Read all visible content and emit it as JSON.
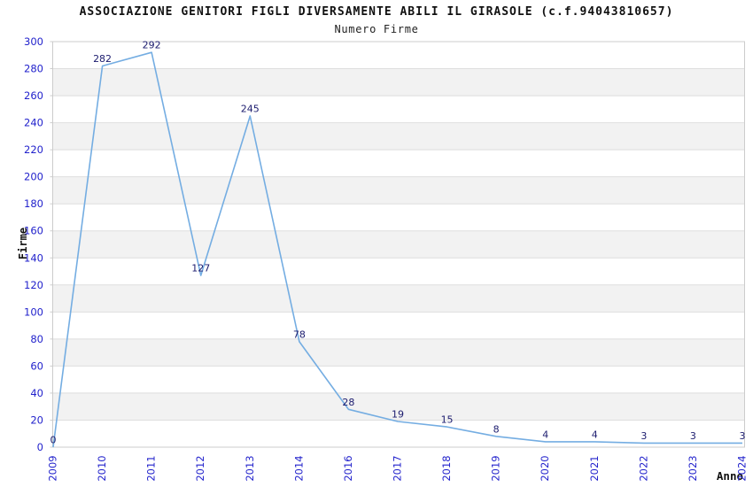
{
  "chart_data": {
    "type": "line",
    "title": "ASSOCIAZIONE GENITORI FIGLI DIVERSAMENTE ABILI IL GIRASOLE (c.f.94043810657)",
    "subtitle": "Numero Firme",
    "xlabel": "Anno",
    "ylabel": "Firme",
    "categories": [
      "2009",
      "2010",
      "2011",
      "2012",
      "2013",
      "2014",
      "2016",
      "2017",
      "2018",
      "2019",
      "2020",
      "2021",
      "2022",
      "2023",
      "2024"
    ],
    "values": [
      0,
      282,
      292,
      127,
      245,
      78,
      28,
      19,
      15,
      8,
      4,
      4,
      3,
      3,
      3
    ],
    "point_labels": [
      "0",
      "282",
      "292",
      "127",
      "245",
      "78",
      "28",
      "19",
      "15",
      "8",
      "4",
      "4",
      "3",
      "3",
      "3"
    ],
    "ylim": [
      0,
      300
    ],
    "ytick_step": 20,
    "ytick_labels": [
      "0",
      "20",
      "40",
      "60",
      "80",
      "100",
      "120",
      "140",
      "160",
      "180",
      "200",
      "220",
      "240",
      "260",
      "280",
      "300"
    ],
    "grid": "horizontal-alternating-bands",
    "legend_position": "none",
    "colors": {
      "series_line": "#74ade2",
      "tick_label_blue": "#2323cc",
      "point_label_navy": "#1b1b6e",
      "band_gray": "#f2f2f2",
      "gridline": "#dedede",
      "plot_border": "#cccccc",
      "title_text": "#111111",
      "background": "#ffffff"
    }
  }
}
